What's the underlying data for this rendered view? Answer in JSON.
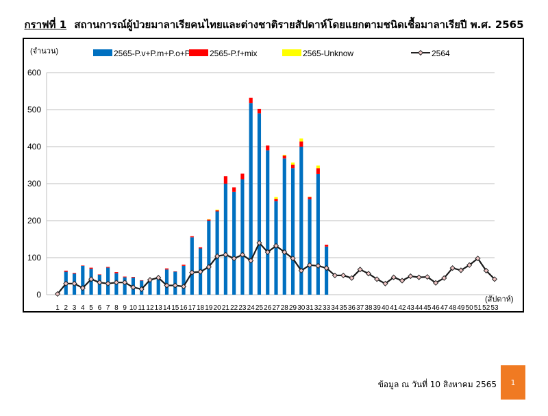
{
  "header": {
    "figure_label": "กราฟที่ 1",
    "title": "สถานการณ์ผู้ป่วยมาลาเรียคนไทยและต่างชาติรายสัปดาห์โดยแยกตามชนิดเชื้อมาลาเรียปี พ.ศ. 2565"
  },
  "footer": {
    "source_note": "ข้อมูล ณ วันที่ 10 สิงหาคม 2565",
    "page_number": "1"
  },
  "chart_data": {
    "type": "bar",
    "stacked": true,
    "ylabel": "(จำนวน)",
    "xlabel": "(สัปดาห์)",
    "ylim": [
      0,
      600
    ],
    "yticks": [
      0,
      100,
      200,
      300,
      400,
      500,
      600
    ],
    "grid": true,
    "legend_position": "top",
    "categories": [
      "1",
      "2",
      "3",
      "4",
      "5",
      "6",
      "7",
      "8",
      "9",
      "10",
      "11",
      "12",
      "13",
      "14",
      "15",
      "16",
      "17",
      "18",
      "19",
      "20",
      "21",
      "22",
      "23",
      "24",
      "25",
      "26",
      "27",
      "28",
      "29",
      "30",
      "31",
      "32",
      "33",
      "34",
      "35",
      "36",
      "37",
      "38",
      "39",
      "40",
      "41",
      "42",
      "43",
      "44",
      "45",
      "46",
      "47",
      "48",
      "49",
      "50",
      "51",
      "52",
      "53"
    ],
    "series": [
      {
        "name": "2565-P.v+P.m+P.o+P.k",
        "type": "bar",
        "color": "#0070c0",
        "values": [
          3,
          62,
          57,
          78,
          70,
          54,
          73,
          58,
          47,
          46,
          38,
          40,
          46,
          68,
          62,
          78,
          155,
          125,
          200,
          225,
          300,
          278,
          312,
          518,
          490,
          390,
          253,
          368,
          342,
          400,
          258,
          326,
          130,
          null,
          null,
          null,
          null,
          null,
          null,
          null,
          null,
          null,
          null,
          null,
          null,
          null,
          null,
          null,
          null,
          null,
          null,
          null,
          null
        ]
      },
      {
        "name": "2565-P.f+mix",
        "type": "bar",
        "color": "#ff0000",
        "values": [
          0,
          3,
          2,
          1,
          3,
          1,
          2,
          3,
          2,
          2,
          1,
          1,
          1,
          3,
          1,
          3,
          3,
          3,
          3,
          3,
          20,
          12,
          15,
          14,
          12,
          13,
          6,
          8,
          9,
          14,
          6,
          16,
          5,
          null,
          null,
          null,
          null,
          null,
          null,
          null,
          null,
          null,
          null,
          null,
          null,
          null,
          null,
          null,
          null,
          null,
          null,
          null,
          null
        ]
      },
      {
        "name": "2565-Unknow",
        "type": "bar",
        "color": "#ffff00",
        "values": [
          0,
          0,
          0,
          0,
          0,
          0,
          0,
          0,
          0,
          0,
          0,
          0,
          0,
          0,
          0,
          0,
          0,
          0,
          1,
          2,
          0,
          0,
          0,
          0,
          0,
          0,
          5,
          2,
          6,
          8,
          1,
          7,
          0,
          null,
          null,
          null,
          null,
          null,
          null,
          null,
          null,
          null,
          null,
          null,
          null,
          null,
          null,
          null,
          null,
          null,
          null,
          null,
          null
        ]
      },
      {
        "name": "2564",
        "type": "line",
        "color": "#000000",
        "values": [
          2,
          30,
          30,
          18,
          42,
          33,
          30,
          33,
          33,
          20,
          15,
          40,
          46,
          25,
          25,
          22,
          60,
          62,
          75,
          104,
          108,
          98,
          108,
          92,
          140,
          115,
          132,
          115,
          98,
          65,
          80,
          78,
          72,
          52,
          52,
          45,
          68,
          57,
          42,
          30,
          47,
          38,
          50,
          47,
          48,
          32,
          45,
          72,
          66,
          80,
          98,
          65,
          42
        ]
      }
    ]
  }
}
